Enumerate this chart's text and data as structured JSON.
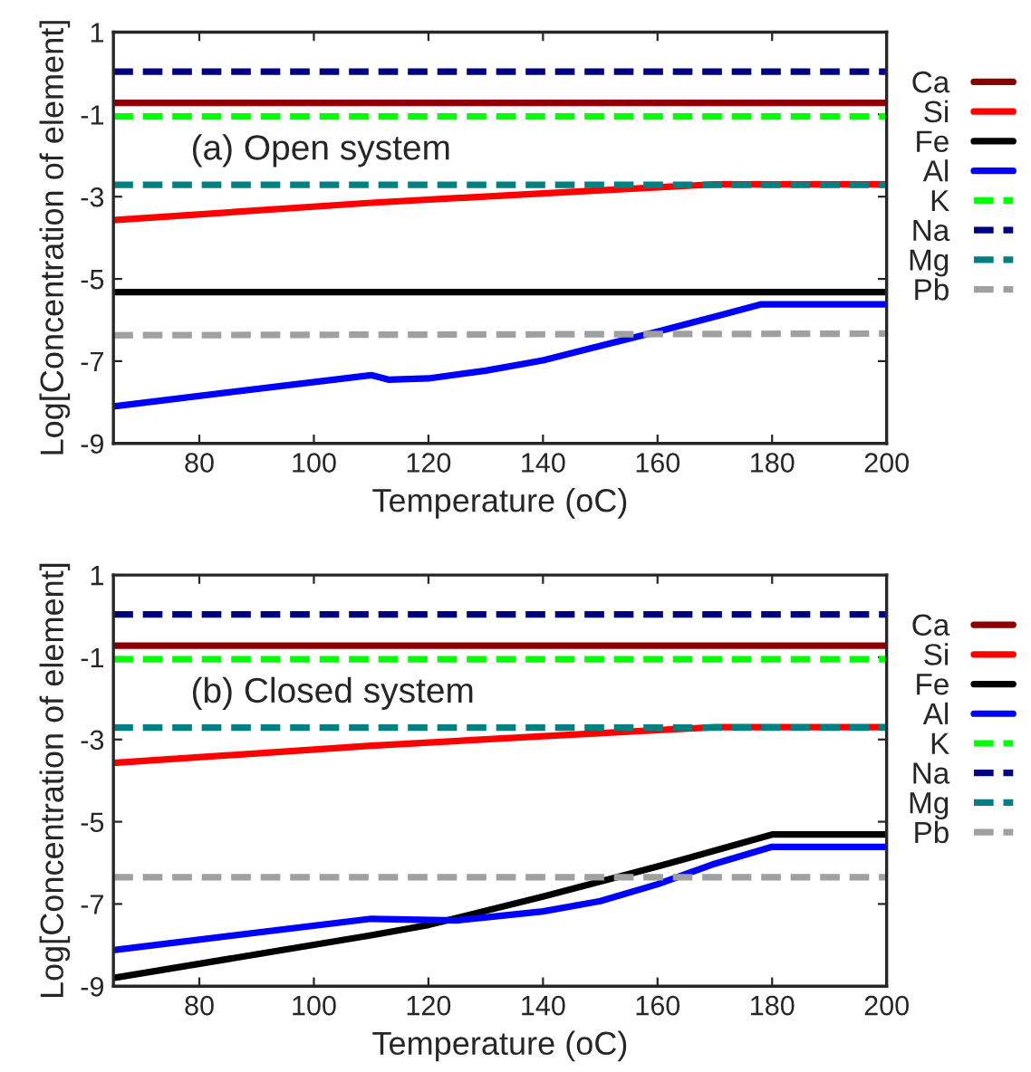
{
  "chart_data": [
    {
      "type": "line",
      "xlabel": "Temperature (oC)",
      "ylabel": "Log[Concentration of element]",
      "annotations": [
        "(a) Open system"
      ],
      "xlim": [
        65,
        200
      ],
      "ylim": [
        -9,
        1
      ],
      "xticks": [
        80,
        100,
        120,
        140,
        160,
        180,
        200
      ],
      "yticks": [
        1,
        -1,
        -3,
        -5,
        -7,
        -9
      ],
      "legend": "right",
      "grid": false,
      "series": [
        {
          "name": "Ca",
          "color": "#8b0000",
          "line_style": "solid",
          "x": [
            65,
            200
          ],
          "values": [
            -0.72,
            -0.72
          ]
        },
        {
          "name": "Si",
          "color": "#ff0000",
          "line_style": "solid",
          "x": [
            65,
            110,
            140,
            170,
            200
          ],
          "values": [
            -3.57,
            -3.15,
            -2.92,
            -2.7,
            -2.7
          ]
        },
        {
          "name": "Fe",
          "color": "#000000",
          "line_style": "solid",
          "x": [
            65,
            200
          ],
          "values": [
            -5.32,
            -5.32
          ]
        },
        {
          "name": "Al",
          "color": "#0000ff",
          "line_style": "solid",
          "x": [
            65,
            110,
            113,
            120,
            130,
            140,
            150,
            160,
            170,
            178,
            200
          ],
          "values": [
            -8.1,
            -7.34,
            -7.45,
            -7.42,
            -7.23,
            -6.98,
            -6.63,
            -6.28,
            -5.92,
            -5.62,
            -5.62
          ]
        },
        {
          "name": "K",
          "color": "#00ff00",
          "line_style": "dashed",
          "x": [
            65,
            200
          ],
          "values": [
            -1.05,
            -1.05
          ]
        },
        {
          "name": "Na",
          "color": "#000080",
          "line_style": "dashed",
          "x": [
            65,
            200
          ],
          "values": [
            0.04,
            0.04
          ]
        },
        {
          "name": "Mg",
          "color": "#008080",
          "line_style": "dashed",
          "x": [
            65,
            200
          ],
          "values": [
            -2.71,
            -2.71
          ]
        },
        {
          "name": "Pb",
          "color": "#a0a0a0",
          "line_style": "dashed",
          "x": [
            65,
            200
          ],
          "values": [
            -6.37,
            -6.33
          ]
        }
      ]
    },
    {
      "type": "line",
      "xlabel": "Temperature (oC)",
      "ylabel": "Log[Concentration of element]",
      "annotations": [
        "(b) Closed system"
      ],
      "xlim": [
        65,
        200
      ],
      "ylim": [
        -9,
        1
      ],
      "xticks": [
        80,
        100,
        120,
        140,
        160,
        180,
        200
      ],
      "yticks": [
        1,
        -1,
        -3,
        -5,
        -7,
        -9
      ],
      "legend": "right",
      "grid": false,
      "series": [
        {
          "name": "Ca",
          "color": "#8b0000",
          "line_style": "solid",
          "x": [
            65,
            200
          ],
          "values": [
            -0.72,
            -0.72
          ]
        },
        {
          "name": "Si",
          "color": "#ff0000",
          "line_style": "solid",
          "x": [
            65,
            110,
            140,
            170,
            200
          ],
          "values": [
            -3.57,
            -3.15,
            -2.92,
            -2.7,
            -2.7
          ]
        },
        {
          "name": "Fe",
          "color": "#000000",
          "line_style": "solid",
          "x": [
            65,
            110,
            120,
            140,
            160,
            180,
            200
          ],
          "values": [
            -8.8,
            -7.76,
            -7.51,
            -6.82,
            -6.09,
            -5.31,
            -5.31
          ]
        },
        {
          "name": "Al",
          "color": "#0000ff",
          "line_style": "solid",
          "x": [
            65,
            110,
            125,
            140,
            150,
            160,
            170,
            180,
            200
          ],
          "values": [
            -8.12,
            -7.36,
            -7.4,
            -7.18,
            -6.93,
            -6.52,
            -6.02,
            -5.61,
            -5.61
          ]
        },
        {
          "name": "K",
          "color": "#00ff00",
          "line_style": "dashed",
          "x": [
            65,
            200
          ],
          "values": [
            -1.05,
            -1.05
          ]
        },
        {
          "name": "Na",
          "color": "#000080",
          "line_style": "dashed",
          "x": [
            65,
            200
          ],
          "values": [
            0.04,
            0.04
          ]
        },
        {
          "name": "Mg",
          "color": "#008080",
          "line_style": "dashed",
          "x": [
            65,
            200
          ],
          "values": [
            -2.71,
            -2.71
          ]
        },
        {
          "name": "Pb",
          "color": "#a0a0a0",
          "line_style": "dashed",
          "x": [
            65,
            200
          ],
          "values": [
            -6.35,
            -6.35
          ]
        }
      ]
    }
  ]
}
